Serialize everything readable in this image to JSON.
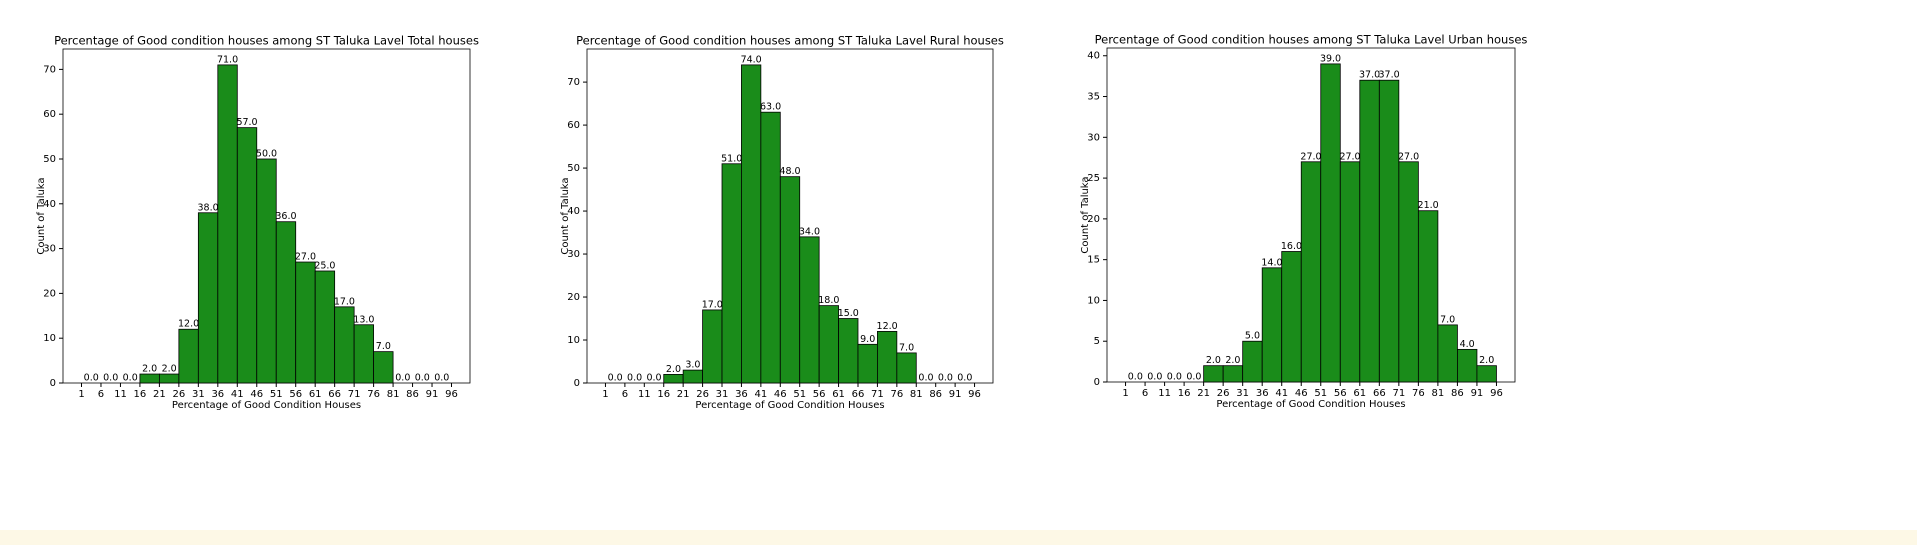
{
  "chart_data": [
    {
      "type": "histogram",
      "title": "Percentage of Good condition houses among ST Taluka Lavel Total houses",
      "xlabel": "Percentage of Good Condition Houses",
      "ylabel": "Count of Taluka",
      "color": "#1a8c1a",
      "bins": [
        1,
        6,
        11,
        16,
        21,
        26,
        31,
        36,
        41,
        46,
        51,
        56,
        61,
        66,
        71,
        76,
        81,
        86,
        91,
        96
      ],
      "values": [
        0,
        0,
        0,
        2,
        2,
        12,
        38,
        71,
        57,
        50,
        36,
        27,
        25,
        17,
        13,
        7,
        0,
        0,
        0
      ],
      "value_labels": [
        "0.0",
        "0.0",
        "0.0",
        "2.0",
        "2.0",
        "12.0",
        "38.0",
        "71.0",
        "57.0",
        "50.0",
        "36.0",
        "27.0",
        "25.0",
        "17.0",
        "13.0",
        "7.0",
        "0.0",
        "0.0",
        "0.0"
      ],
      "xlim": [
        -3.75,
        100.75
      ],
      "xticks": [
        1,
        6,
        11,
        16,
        21,
        26,
        31,
        36,
        41,
        46,
        51,
        56,
        61,
        66,
        71,
        76,
        81,
        86,
        91,
        96
      ],
      "ylim": [
        0,
        74.55
      ],
      "yticks": [
        0,
        10,
        20,
        30,
        40,
        50,
        60,
        70
      ]
    },
    {
      "type": "histogram",
      "title": "Percentage of Good condition houses among ST Taluka Lavel Rural houses",
      "xlabel": "Percentage of Good Condition Houses",
      "ylabel": "Count of Taluka",
      "color": "#1a8c1a",
      "bins": [
        1,
        6,
        11,
        16,
        21,
        26,
        31,
        36,
        41,
        46,
        51,
        56,
        61,
        66,
        71,
        76,
        81,
        86,
        91,
        96
      ],
      "values": [
        0,
        0,
        0,
        2,
        3,
        17,
        51,
        74,
        63,
        48,
        34,
        18,
        15,
        9,
        12,
        7,
        0,
        0,
        0
      ],
      "value_labels": [
        "0.0",
        "0.0",
        "0.0",
        "2.0",
        "3.0",
        "17.0",
        "51.0",
        "74.0",
        "63.0",
        "48.0",
        "34.0",
        "18.0",
        "15.0",
        "9.0",
        "12.0",
        "7.0",
        "0.0",
        "0.0",
        "0.0"
      ],
      "xlim": [
        -3.75,
        100.75
      ],
      "xticks": [
        1,
        6,
        11,
        16,
        21,
        26,
        31,
        36,
        41,
        46,
        51,
        56,
        61,
        66,
        71,
        76,
        81,
        86,
        91,
        96
      ],
      "ylim": [
        0,
        77.7
      ],
      "yticks": [
        0,
        10,
        20,
        30,
        40,
        50,
        60,
        70
      ]
    },
    {
      "type": "histogram",
      "title": "Percentage of Good condition houses among ST Taluka Lavel Urban houses",
      "xlabel": "Percentage of Good Condition Houses",
      "ylabel": "Count of Taluka",
      "color": "#1a8c1a",
      "bins": [
        1,
        6,
        11,
        16,
        21,
        26,
        31,
        36,
        41,
        46,
        51,
        56,
        61,
        66,
        71,
        76,
        81,
        86,
        91,
        96
      ],
      "values": [
        0,
        0,
        0,
        0,
        2,
        2,
        5,
        14,
        16,
        27,
        39,
        27,
        37,
        37,
        27,
        21,
        7,
        4,
        2
      ],
      "value_labels": [
        "0.0",
        "0.0",
        "0.0",
        "0.0",
        "2.0",
        "2.0",
        "5.0",
        "14.0",
        "16.0",
        "27.0",
        "39.0",
        "27.0",
        "37.0",
        "37.0",
        "27.0",
        "21.0",
        "7.0",
        "4.0",
        "2.0"
      ],
      "xlim": [
        -3.75,
        100.75
      ],
      "xticks": [
        1,
        6,
        11,
        16,
        21,
        26,
        31,
        36,
        41,
        46,
        51,
        56,
        61,
        66,
        71,
        76,
        81,
        86,
        91,
        96
      ],
      "ylim": [
        0,
        40.95
      ],
      "yticks": [
        0,
        5,
        10,
        15,
        20,
        25,
        30,
        35,
        40
      ]
    }
  ]
}
